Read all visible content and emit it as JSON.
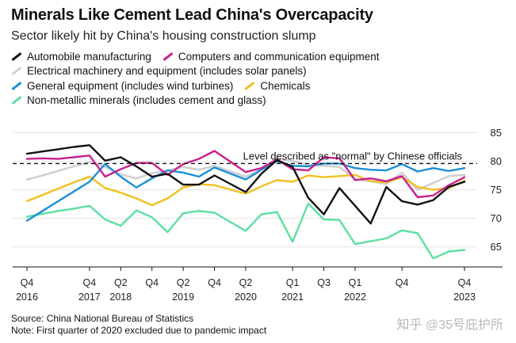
{
  "header": {
    "title": "Minerals Like Cement Lead China's Overcapacity",
    "subtitle": "Sector likely hit by China's housing construction slump"
  },
  "footer": {
    "source": "Source: China National Bureau of Statistics",
    "note": "Note: First quarter of 2020 excluded due to pandemic impact",
    "watermark": "知乎 @35号庇护所"
  },
  "chart_data": {
    "type": "line",
    "title": "Minerals Like Cement Lead China's Overcapacity",
    "subtitle": "Sector likely hit by China's housing construction slump",
    "xlabel": "",
    "ylabel": "",
    "ylim": [
      61.5,
      87
    ],
    "yticks": [
      65,
      70,
      75,
      80,
      85
    ],
    "grid": true,
    "legend_position": "top",
    "x": [
      "2016Q4",
      "2017Q1",
      "2017Q2",
      "2017Q3",
      "2017Q4",
      "2018Q1",
      "2018Q2",
      "2018Q3",
      "2018Q4",
      "2019Q1",
      "2019Q2",
      "2019Q3",
      "2019Q4",
      "2020Q2",
      "2020Q3",
      "2020Q4",
      "2021Q1",
      "2021Q2",
      "2021Q3",
      "2021Q4",
      "2022Q1",
      "2022Q2",
      "2022Q3",
      "2022Q4",
      "2023Q1",
      "2023Q2",
      "2023Q3",
      "2023Q4"
    ],
    "xticks": [
      {
        "x": "2016Q4",
        "label": "Q4",
        "year": "2016"
      },
      {
        "x": "2017Q4",
        "label": "Q4",
        "year": "2017"
      },
      {
        "x": "2018Q2",
        "label": "Q2",
        "year": "2018"
      },
      {
        "x": "2018Q4",
        "label": "Q4",
        "year": ""
      },
      {
        "x": "2019Q2",
        "label": "Q2",
        "year": "2019"
      },
      {
        "x": "2019Q4",
        "label": "Q4",
        "year": ""
      },
      {
        "x": "2020Q2",
        "label": "Q2",
        "year": "2020"
      },
      {
        "x": "2021Q1",
        "label": "Q1",
        "year": "2021"
      },
      {
        "x": "2021Q3",
        "label": "Q3",
        "year": ""
      },
      {
        "x": "2022Q1",
        "label": "Q1",
        "year": "2022"
      },
      {
        "x": "2022Q4",
        "label": "Q4",
        "year": ""
      },
      {
        "x": "2023Q4",
        "label": "Q4",
        "year": "2023"
      }
    ],
    "reference_line": {
      "value": 79.6,
      "label": "Level described as \"normal\" by Chinese officials"
    },
    "series": [
      {
        "name": "Automobile manufacturing",
        "color": "#111111",
        "values": [
          81.3,
          81.7,
          82.1,
          82.5,
          82.8,
          80.1,
          80.7,
          79.1,
          77.3,
          77.8,
          75.9,
          75.9,
          77.5,
          74.6,
          77.8,
          80.2,
          79.0,
          73.6,
          70.7,
          75.3,
          72.2,
          69.1,
          75.5,
          73.0,
          72.4,
          73.2,
          75.5,
          76.4
        ]
      },
      {
        "name": "Computers and communication equipment",
        "color": "#c8208c",
        "values": [
          80.4,
          80.5,
          80.4,
          80.7,
          81.0,
          77.3,
          78.6,
          79.7,
          79.7,
          77.6,
          79.5,
          80.4,
          81.8,
          78.1,
          78.8,
          80.3,
          78.6,
          78.4,
          80.7,
          80.5,
          76.7,
          77.0,
          76.5,
          77.4,
          73.7,
          74.0,
          75.8,
          77.2
        ]
      },
      {
        "name": "Electrical machinery and equipment (includes solar panels)",
        "color": "#d0d0d0",
        "values": [
          76.8,
          77.5,
          78.3,
          79.1,
          79.8,
          79.0,
          77.7,
          77.0,
          77.9,
          78.4,
          79.0,
          78.5,
          79.2,
          77.3,
          78.5,
          80.5,
          80.0,
          79.4,
          79.2,
          79.0,
          76.8,
          76.5,
          76.0,
          78.0,
          75.0,
          76.2,
          77.4,
          77.6
        ]
      },
      {
        "name": "General equipment (includes wind turbines)",
        "color": "#1a8fd6",
        "values": [
          69.6,
          71.3,
          73.0,
          74.7,
          76.4,
          79.5,
          77.3,
          75.4,
          77.0,
          78.4,
          78.0,
          77.3,
          78.9,
          76.8,
          78.5,
          80.0,
          79.2,
          79.1,
          79.6,
          79.6,
          78.8,
          78.5,
          78.4,
          79.5,
          78.2,
          78.8,
          78.3,
          78.8
        ]
      },
      {
        "name": "Chemicals",
        "color": "#f0c020",
        "values": [
          73.0,
          74.1,
          75.2,
          76.3,
          77.3,
          75.3,
          74.5,
          73.5,
          72.3,
          73.5,
          75.4,
          76.0,
          75.8,
          74.3,
          75.6,
          76.7,
          76.4,
          77.5,
          77.2,
          77.4,
          77.6,
          76.5,
          76.3,
          77.2,
          75.5,
          75.0,
          75.3,
          76.6
        ]
      },
      {
        "name": "Non-metallic minerals (includes cement and glass)",
        "color": "#5ce0a0",
        "values": [
          70.3,
          70.8,
          71.3,
          71.7,
          72.2,
          69.8,
          68.7,
          71.4,
          70.2,
          67.6,
          70.9,
          71.3,
          71.0,
          67.8,
          70.7,
          71.1,
          65.9,
          72.6,
          69.8,
          69.7,
          65.5,
          66.0,
          66.5,
          67.9,
          67.4,
          63.0,
          64.2,
          64.5
        ]
      }
    ]
  }
}
